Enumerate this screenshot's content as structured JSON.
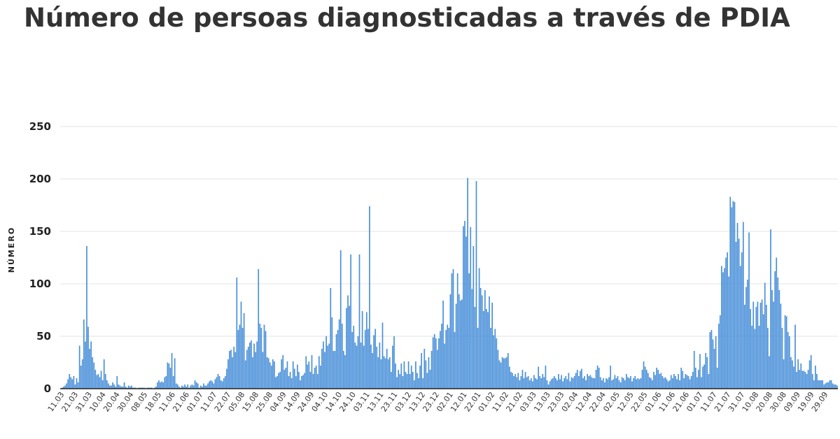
{
  "title": "Número de persoas diagnosticadas a través de PDIA",
  "colors": {
    "bar": "#4a90d9",
    "bar_edge": "#2f6fb6",
    "grid": "#e3e3e3",
    "axis": "#222222",
    "title": "#333333"
  },
  "chart_data": {
    "type": "bar",
    "ylabel": "NÚMERO",
    "xlabel": "",
    "ylim": [
      0,
      250
    ],
    "yticks": [
      0,
      50,
      100,
      150,
      200,
      250
    ],
    "grid": true,
    "x_tick_labels": [
      "11.03",
      "21.03",
      "31.03",
      "10.04",
      "20.04",
      "30.04",
      "08.05",
      "18.05",
      "11.06",
      "21.06",
      "01.07",
      "11.07",
      "22.07",
      "05.08",
      "15.08",
      "25.08",
      "04.09",
      "14.09",
      "24.09",
      "04.10",
      "14.10",
      "24.10",
      "03.11",
      "13.11",
      "23.11",
      "03.12",
      "13.12",
      "23.12",
      "02.01",
      "12.01",
      "22.01",
      "01.02",
      "11.02",
      "21.02",
      "03.03",
      "13.03",
      "23.03",
      "02.04",
      "12.04",
      "22.04",
      "02.05",
      "12.05",
      "22.05",
      "01.06",
      "11.06",
      "21.06",
      "01.07",
      "11.07",
      "21.07",
      "31.07",
      "10.08",
      "20.08",
      "30.08",
      "09.09",
      "19.09",
      "29.09"
    ],
    "values": [
      0,
      1,
      2,
      3,
      5,
      9,
      14,
      11,
      9,
      12,
      4,
      10,
      6,
      41,
      22,
      28,
      66,
      45,
      136,
      59,
      38,
      45,
      30,
      25,
      18,
      13,
      14,
      11,
      17,
      8,
      28,
      14,
      8,
      5,
      3,
      3,
      6,
      4,
      2,
      12,
      4,
      3,
      2,
      2,
      6,
      2,
      1,
      3,
      2,
      3,
      1,
      1,
      1,
      0,
      1,
      1,
      1,
      1,
      1,
      0,
      1,
      1,
      1,
      1,
      0,
      1,
      2,
      6,
      8,
      6,
      7,
      6,
      11,
      12,
      25,
      24,
      20,
      34,
      12,
      29,
      5,
      4,
      2,
      1,
      3,
      2,
      4,
      2,
      4,
      1,
      3,
      4,
      3,
      8,
      6,
      5,
      1,
      3,
      2,
      5,
      3,
      3,
      5,
      7,
      8,
      7,
      5,
      9,
      11,
      14,
      12,
      8,
      7,
      10,
      12,
      19,
      28,
      36,
      37,
      30,
      40,
      35,
      106,
      56,
      61,
      83,
      58,
      72,
      27,
      37,
      40,
      44,
      46,
      30,
      43,
      35,
      45,
      114,
      62,
      58,
      35,
      61,
      55,
      30,
      29,
      25,
      22,
      28,
      26,
      11,
      12,
      15,
      16,
      28,
      32,
      18,
      20,
      26,
      12,
      16,
      10,
      26,
      19,
      12,
      23,
      16,
      8,
      12,
      13,
      15,
      31,
      23,
      26,
      16,
      32,
      14,
      20,
      22,
      14,
      31,
      22,
      38,
      45,
      35,
      50,
      41,
      43,
      96,
      68,
      36,
      36,
      52,
      56,
      66,
      132,
      62,
      36,
      32,
      77,
      89,
      79,
      128,
      54,
      60,
      44,
      41,
      50,
      128,
      44,
      74,
      41,
      56,
      73,
      57,
      174,
      42,
      34,
      51,
      57,
      40,
      30,
      44,
      28,
      63,
      31,
      29,
      38,
      28,
      30,
      16,
      41,
      50,
      24,
      11,
      18,
      14,
      24,
      12,
      26,
      16,
      14,
      26,
      14,
      22,
      16,
      8,
      26,
      15,
      10,
      22,
      34,
      10,
      38,
      27,
      15,
      30,
      18,
      36,
      49,
      52,
      48,
      37,
      48,
      55,
      62,
      84,
      43,
      56,
      61,
      58,
      90,
      110,
      114,
      54,
      81,
      110,
      90,
      84,
      85,
      155,
      160,
      145,
      201,
      110,
      154,
      95,
      136,
      78,
      198,
      58,
      115,
      96,
      89,
      74,
      94,
      76,
      73,
      88,
      58,
      82,
      51,
      57,
      48,
      37,
      27,
      25,
      30,
      29,
      29,
      30,
      34,
      21,
      16,
      15,
      12,
      14,
      11,
      15,
      8,
      12,
      18,
      10,
      16,
      11,
      12,
      8,
      10,
      7,
      13,
      10,
      9,
      21,
      12,
      10,
      14,
      11,
      22,
      8,
      4,
      7,
      9,
      10,
      12,
      10,
      8,
      14,
      9,
      13,
      7,
      10,
      12,
      9,
      15,
      7,
      11,
      10,
      12,
      15,
      18,
      12,
      17,
      19,
      10,
      12,
      8,
      14,
      12,
      13,
      11,
      10,
      10,
      18,
      22,
      20,
      11,
      8,
      10,
      6,
      10,
      9,
      11,
      22,
      8,
      9,
      13,
      10,
      12,
      8,
      6,
      11,
      10,
      8,
      14,
      11,
      10,
      12,
      7,
      10,
      12,
      9,
      10,
      9,
      10,
      18,
      26,
      21,
      18,
      15,
      11,
      10,
      8,
      16,
      13,
      20,
      18,
      14,
      15,
      12,
      10,
      11,
      9,
      7,
      8,
      13,
      10,
      14,
      12,
      9,
      14,
      8,
      20,
      17,
      10,
      14,
      13,
      12,
      9,
      12,
      16,
      36,
      20,
      11,
      18,
      33,
      11,
      21,
      23,
      34,
      30,
      14,
      54,
      56,
      47,
      38,
      50,
      20,
      62,
      70,
      117,
      111,
      115,
      125,
      130,
      107,
      183,
      173,
      179,
      178,
      140,
      158,
      143,
      117,
      130,
      159,
      80,
      97,
      104,
      149,
      76,
      60,
      83,
      57,
      78,
      83,
      60,
      82,
      85,
      71,
      101,
      80,
      58,
      31,
      152,
      94,
      83,
      112,
      125,
      106,
      94,
      81,
      58,
      28,
      70,
      69,
      54,
      50,
      30,
      27,
      21,
      61,
      16,
      28,
      18,
      24,
      17,
      17,
      16,
      14,
      18,
      27,
      32,
      14,
      8,
      22,
      14,
      8,
      8,
      8,
      8,
      4,
      5,
      6,
      6,
      8,
      8,
      5,
      4,
      4,
      3
    ]
  }
}
